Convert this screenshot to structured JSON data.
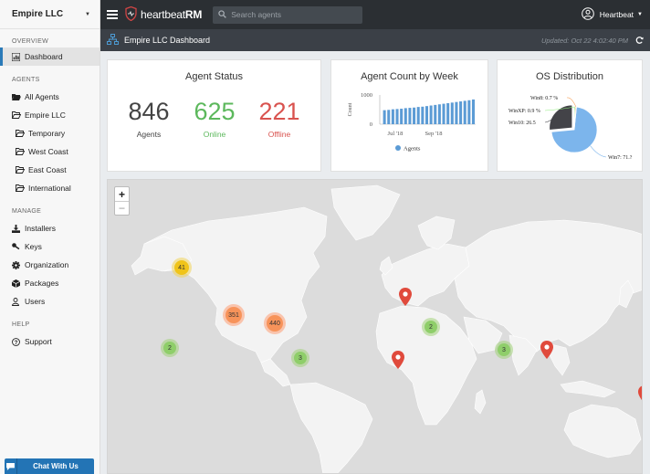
{
  "sidebar": {
    "org_name": "Empire LLC",
    "overview_heading": "OVERVIEW",
    "dashboard_label": "Dashboard",
    "agents_heading": "AGENTS",
    "all_agents": "All Agents",
    "group": "Empire LLC",
    "subgroups": [
      "Temporary",
      "West Coast",
      "East Coast",
      "International"
    ],
    "manage_heading": "MANAGE",
    "manage_items": [
      "Installers",
      "Keys",
      "Organization",
      "Packages",
      "Users"
    ],
    "help_heading": "HELP",
    "support": "Support",
    "chat_label": "Chat With Us"
  },
  "topbar": {
    "brand_light": "heartbeat",
    "brand_bold": "RM",
    "search_placeholder": "Search agents",
    "user_name": "Heartbeat"
  },
  "subbar": {
    "title": "Empire LLC Dashboard",
    "updated": "Updated: Oct 22 4:02:40 PM"
  },
  "agent_status": {
    "title": "Agent Status",
    "agents_value": "846",
    "agents_label": "Agents",
    "online_value": "625",
    "online_label": "Online",
    "offline_value": "221",
    "offline_label": "Offline",
    "colors": {
      "total": "#444444",
      "online": "#5cb85c",
      "offline": "#d9534f"
    }
  },
  "agent_count": {
    "title": "Agent Count by Week"
  },
  "os_distribution": {
    "title": "OS Distribution"
  },
  "chart_data": [
    {
      "type": "bar",
      "title": "Agent Count by Week",
      "xlabel": "",
      "ylabel": "Count",
      "ylim": [
        0,
        1000
      ],
      "yticks": [
        "1000",
        "0"
      ],
      "xtick_labels": [
        "Jul '18",
        "Sep '18"
      ],
      "legend": "bottom",
      "series": [
        {
          "name": "Agents",
          "color": "#5b9bd5",
          "values": [
            480,
            490,
            510,
            520,
            530,
            550,
            560,
            570,
            590,
            600,
            620,
            640,
            660,
            680,
            700,
            720,
            740,
            760,
            780,
            800,
            820,
            846
          ]
        }
      ]
    },
    {
      "type": "pie",
      "title": "OS Distribution",
      "slices": [
        {
          "label": "Win7",
          "display": "Win7: 71.?",
          "value": 71.9,
          "color": "#7cb5ec"
        },
        {
          "label": "Win10",
          "display": "Win10: 26.5",
          "value": 26.5,
          "color": "#434348"
        },
        {
          "label": "WinXP",
          "display": "WinXP: 0.9 %",
          "value": 0.9,
          "color": "#90ed7d"
        },
        {
          "label": "Win8",
          "display": "Win8: 0.7 %",
          "value": 0.7,
          "color": "#f7a35c"
        }
      ]
    }
  ],
  "map": {
    "zoom_in": "+",
    "zoom_out": "−",
    "clusters": [
      {
        "count": "41",
        "color": "yellow"
      },
      {
        "count": "351",
        "color": "orange"
      },
      {
        "count": "440",
        "color": "orange"
      },
      {
        "count": "2",
        "color": "green"
      },
      {
        "count": "3",
        "color": "green"
      },
      {
        "count": "2",
        "color": "green"
      },
      {
        "count": "3",
        "color": "green"
      }
    ]
  }
}
